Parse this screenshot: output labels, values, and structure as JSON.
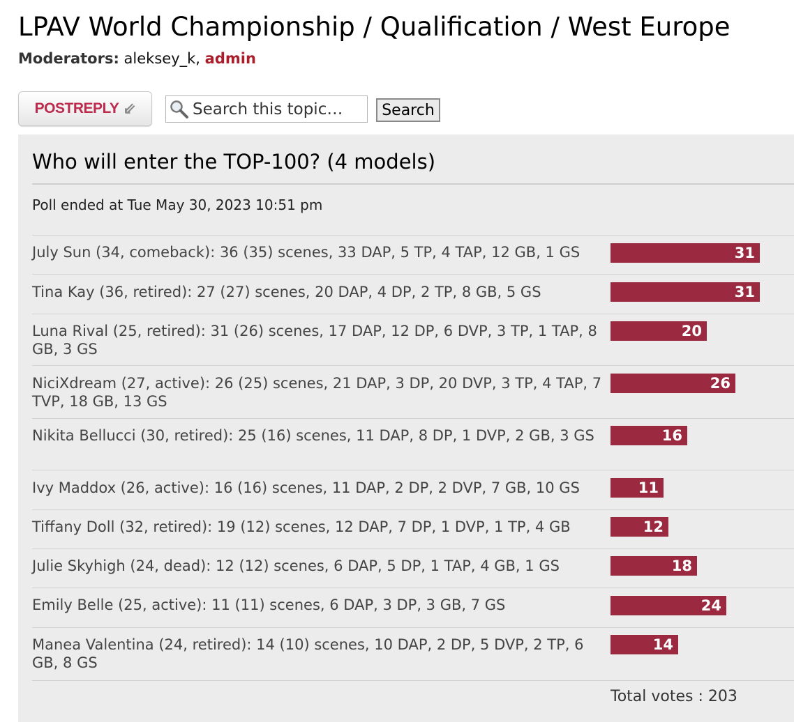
{
  "topic": {
    "title": "LPAV World Championship / Qualification / West Europe",
    "moderators_label": "Moderators:",
    "moderators": [
      {
        "name": "aleksey_k",
        "role": "moderator"
      },
      {
        "name": "admin",
        "role": "admin"
      }
    ],
    "separator": ","
  },
  "toolbar": {
    "post_reply_label": "POSTREPLY",
    "search_placeholder": "Search this topic…",
    "search_button": "Search"
  },
  "poll": {
    "title": "Who will enter the TOP-100? (4 models)",
    "ended_text": "Poll ended at Tue May 30, 2023 10:51 pm",
    "max_votes": 31,
    "options": [
      {
        "label": "July Sun (34, comeback): 36 (35) scenes, 33 DAP, 5 TP, 4 TAP, 12 GB, 1 GS",
        "votes": 31
      },
      {
        "label": "Tina Kay (36, retired): 27 (27) scenes, 20 DAP, 4 DP, 2 TP, 8 GB, 5 GS",
        "votes": 31
      },
      {
        "label": "Luna Rival (25, retired): 31 (26) scenes, 17 DAP, 12 DP, 6 DVP, 3 TP, 1 TAP, 8 GB, 3 GS",
        "votes": 20
      },
      {
        "label": "NiciXdream (27, active): 26 (25) scenes, 21 DAP, 3 DP, 20 DVP, 3 TP, 4 TAP, 7 TVP, 18 GB, 13 GS",
        "votes": 26
      },
      {
        "label": "Nikita Bellucci (30, retired): 25 (16) scenes, 11 DAP, 8 DP, 1 DVP, 2 GB, 3 GS",
        "votes": 16
      },
      {
        "label": "Ivy Maddox (26, active): 16 (16) scenes, 11 DAP, 2 DP, 2 DVP, 7 GB, 10 GS",
        "votes": 11
      },
      {
        "label": "Tiffany Doll (32, retired): 19 (12) scenes, 12 DAP, 7 DP, 1 DVP, 1 TP, 4 GB",
        "votes": 12
      },
      {
        "label": "Julie Skyhigh (24, dead): 12 (12) scenes, 6 DAP, 5 DP, 1 TAP, 4 GB, 1 GS",
        "votes": 18
      },
      {
        "label": "Emily Belle (25, active): 11 (11) scenes, 6 DAP, 3 DP, 3 GB, 7 GS",
        "votes": 24
      },
      {
        "label": "Manea Valentina (24, retired): 14 (10) scenes, 10 DAP, 2 DP, 5 DVP, 2 TP, 6 GB, 8 GS",
        "votes": 14
      }
    ],
    "total_votes_label": "Total votes : 203"
  },
  "colors": {
    "bar": "#9b2a40",
    "admin": "#aa1d2a",
    "post_reply_text": "#bc2a4d",
    "panel_bg": "#ececec"
  },
  "icons": {
    "post_reply": "reply-arrow-icon",
    "search": "magnifier-icon"
  }
}
